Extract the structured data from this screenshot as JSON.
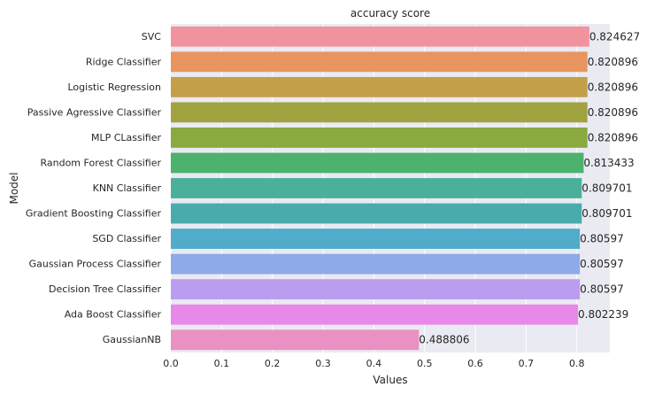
{
  "chart_data": {
    "type": "bar",
    "orientation": "horizontal",
    "title": "accuracy score",
    "xlabel": "Values",
    "ylabel": "Model",
    "xlim": [
      0,
      0.865
    ],
    "xticks": [
      0.0,
      0.1,
      0.2,
      0.3,
      0.4,
      0.5,
      0.6,
      0.7,
      0.8
    ],
    "xtick_labels": [
      "0.0",
      "0.1",
      "0.2",
      "0.3",
      "0.4",
      "0.5",
      "0.6",
      "0.7",
      "0.8"
    ],
    "grid": true,
    "categories": [
      "SVC",
      "Ridge Classifier",
      "Logistic Regression",
      "Passive Agressive Classifier",
      "MLP CLassifier",
      "Random Forest Classifier",
      "KNN Classifier",
      "Gradient Boosting Classifier",
      "SGD Classifier",
      "Gaussian Process Classifier",
      "Decision Tree Classifier",
      "Ada Boost Classifier",
      "GaussianNB"
    ],
    "values": [
      0.824627,
      0.820896,
      0.820896,
      0.820896,
      0.820896,
      0.813433,
      0.809701,
      0.809701,
      0.80597,
      0.80597,
      0.80597,
      0.802239,
      0.488806
    ],
    "value_labels": [
      "0.824627",
      "0.820896",
      "0.820896",
      "0.820896",
      "0.820896",
      "0.813433",
      "0.809701",
      "0.809701",
      "0.80597",
      "0.80597",
      "0.80597",
      "0.802239",
      "0.488806"
    ],
    "colors": [
      "#f0939f",
      "#e8955f",
      "#c39f48",
      "#a1a340",
      "#8aa93e",
      "#4cb26e",
      "#4bb09a",
      "#4aabad",
      "#50acc9",
      "#8eaae8",
      "#bb9df0",
      "#e888e8",
      "#e891c2"
    ]
  },
  "style": {
    "plot_background": "#eaeaf2",
    "grid_color": "#ffffff",
    "text_color": "#262626"
  }
}
